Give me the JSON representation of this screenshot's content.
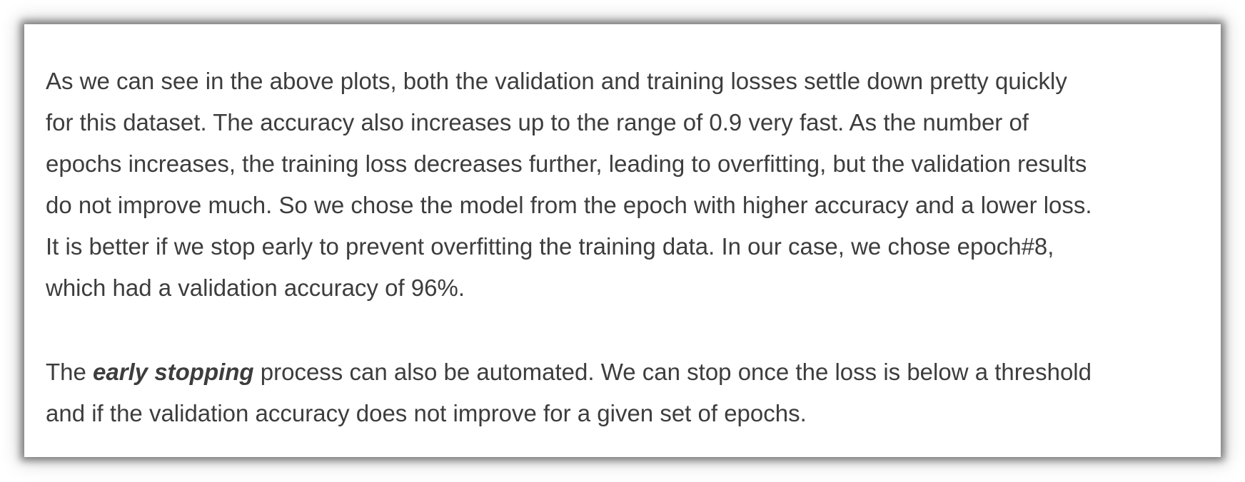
{
  "article": {
    "paragraph1": {
      "lines": [
        "As we can see in the above plots, both the validation and training losses settle down pretty quickly",
        "for this dataset. The accuracy also increases up to the range of 0.9 very fast. As the number of",
        "epochs increases, the training loss decreases further, leading to overfitting, but the validation results",
        "do not improve much. So we chose the model from the epoch with higher accuracy and a lower loss.",
        "It is better if we stop early to prevent overfitting the training data. In our case, we chose epoch#8,",
        "which had a validation accuracy of 96%."
      ]
    },
    "paragraph2": {
      "prefix": "The ",
      "emphasis": "early stopping",
      "line1_rest": " process can also be automated. We can stop once the loss is below a threshold",
      "line2": "and if the validation accuracy does not improve for a given set of epochs."
    }
  }
}
